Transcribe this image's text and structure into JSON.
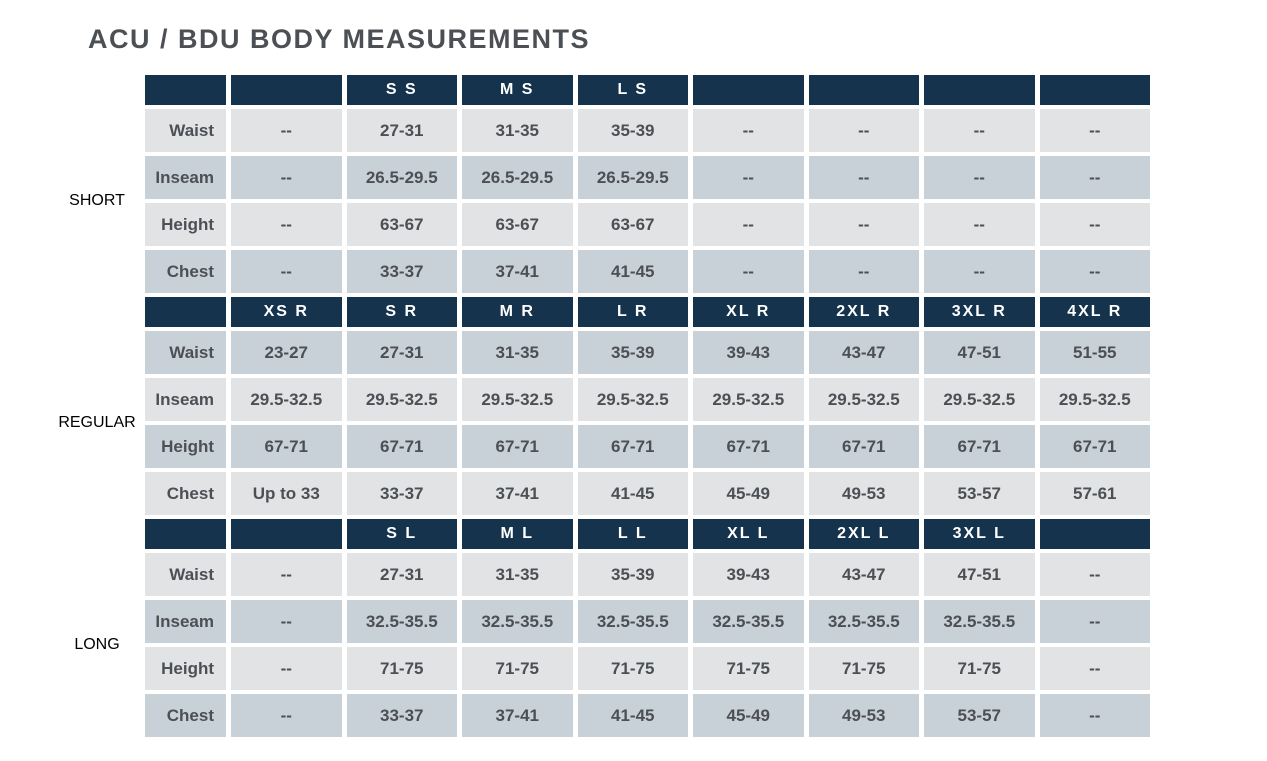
{
  "title": "ACU / BDU BODY MEASUREMENTS",
  "colors": {
    "header_bg": "#15334d",
    "header_text": "#ffffff",
    "row_light": "#e1e3e5",
    "row_dark": "#c9d1d8",
    "text": "#4c5055"
  },
  "empty_value": "--",
  "sections": [
    {
      "name": "SHORT",
      "columns": [
        "",
        "S S",
        "M S",
        "L S",
        "",
        "",
        "",
        ""
      ],
      "rows": [
        {
          "label": "Waist",
          "shade": "light",
          "values": [
            "--",
            "27-31",
            "31-35",
            "35-39",
            "--",
            "--",
            "--",
            "--"
          ]
        },
        {
          "label": "Inseam",
          "shade": "dark",
          "values": [
            "--",
            "26.5-29.5",
            "26.5-29.5",
            "26.5-29.5",
            "--",
            "--",
            "--",
            "--"
          ]
        },
        {
          "label": "Height",
          "shade": "light",
          "values": [
            "--",
            "63-67",
            "63-67",
            "63-67",
            "--",
            "--",
            "--",
            "--"
          ]
        },
        {
          "label": "Chest",
          "shade": "dark",
          "values": [
            "--",
            "33-37",
            "37-41",
            "41-45",
            "--",
            "--",
            "--",
            "--"
          ]
        }
      ]
    },
    {
      "name": "REGULAR",
      "columns": [
        "XS R",
        "S R",
        "M R",
        "L R",
        "XL R",
        "2XL R",
        "3XL R",
        "4XL R"
      ],
      "rows": [
        {
          "label": "Waist",
          "shade": "dark",
          "values": [
            "23-27",
            "27-31",
            "31-35",
            "35-39",
            "39-43",
            "43-47",
            "47-51",
            "51-55"
          ]
        },
        {
          "label": "Inseam",
          "shade": "light",
          "values": [
            "29.5-32.5",
            "29.5-32.5",
            "29.5-32.5",
            "29.5-32.5",
            "29.5-32.5",
            "29.5-32.5",
            "29.5-32.5",
            "29.5-32.5"
          ]
        },
        {
          "label": "Height",
          "shade": "dark",
          "values": [
            "67-71",
            "67-71",
            "67-71",
            "67-71",
            "67-71",
            "67-71",
            "67-71",
            "67-71"
          ]
        },
        {
          "label": "Chest",
          "shade": "light",
          "values": [
            "Up to 33",
            "33-37",
            "37-41",
            "41-45",
            "45-49",
            "49-53",
            "53-57",
            "57-61"
          ]
        }
      ]
    },
    {
      "name": "LONG",
      "columns": [
        "",
        "S L",
        "M L",
        "L L",
        "XL L",
        "2XL L",
        "3XL L",
        ""
      ],
      "rows": [
        {
          "label": "Waist",
          "shade": "light",
          "values": [
            "--",
            "27-31",
            "31-35",
            "35-39",
            "39-43",
            "43-47",
            "47-51",
            "--"
          ]
        },
        {
          "label": "Inseam",
          "shade": "dark",
          "values": [
            "--",
            "32.5-35.5",
            "32.5-35.5",
            "32.5-35.5",
            "32.5-35.5",
            "32.5-35.5",
            "32.5-35.5",
            "--"
          ]
        },
        {
          "label": "Height",
          "shade": "light",
          "values": [
            "--",
            "71-75",
            "71-75",
            "71-75",
            "71-75",
            "71-75",
            "71-75",
            "--"
          ]
        },
        {
          "label": "Chest",
          "shade": "dark",
          "values": [
            "--",
            "33-37",
            "37-41",
            "41-45",
            "45-49",
            "49-53",
            "53-57",
            "--"
          ]
        }
      ]
    }
  ]
}
